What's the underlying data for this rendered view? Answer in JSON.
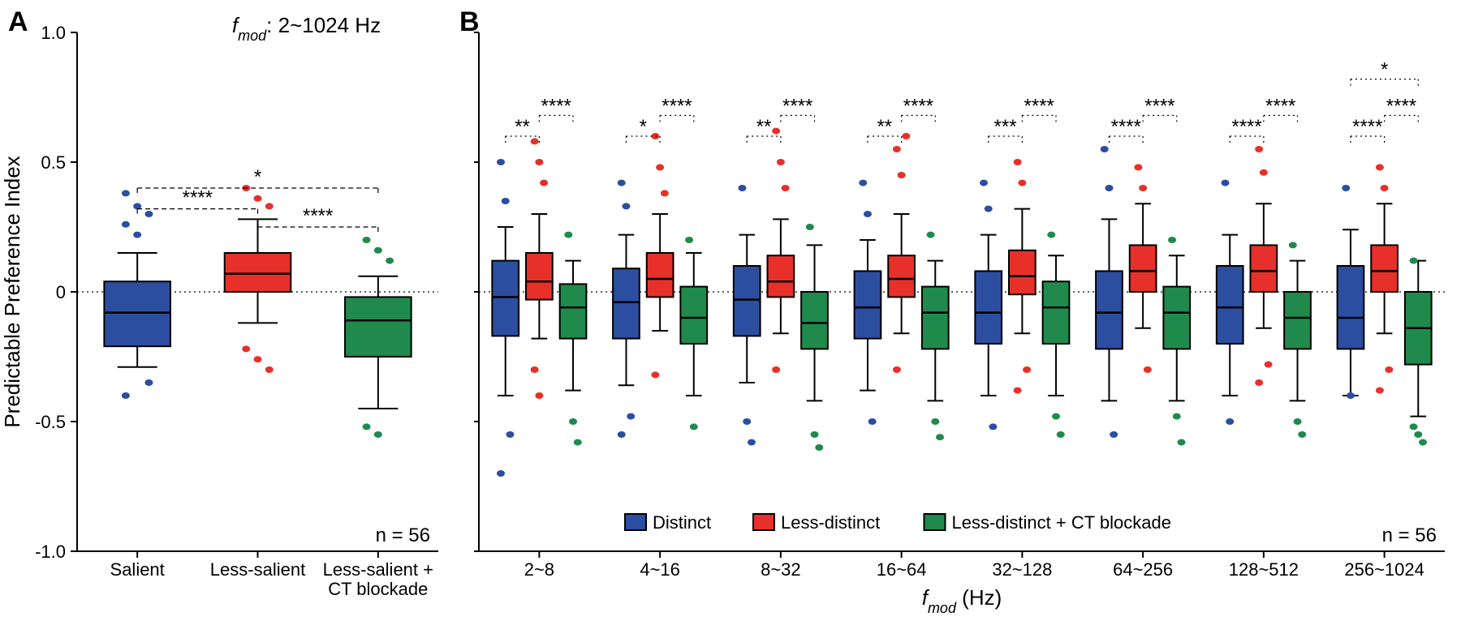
{
  "colors": {
    "blue": "#2b4ea0",
    "red": "#e7302a",
    "green": "#1f8a4c",
    "black": "#000000",
    "white": "#ffffff"
  },
  "ylim": [
    -1.0,
    1.0
  ],
  "yticks": [
    -1.0,
    -0.5,
    0,
    0.5,
    1.0
  ],
  "ytick_labels": [
    "-1.0",
    "-0.5",
    "0",
    "0.5",
    "1.0"
  ],
  "yaxis_title": "Predictable Preference Index",
  "panelA": {
    "label": "A",
    "title_prefix": "f",
    "title_sub": "mod",
    "title_rest": ": 2~1024 Hz",
    "n_text": "n = 56",
    "categories": [
      "Salient",
      "Less-salient",
      "Less-salient +\nCT blockade"
    ],
    "sig": [
      {
        "from": 0,
        "to": 2,
        "y": 0.4,
        "stars": "*"
      },
      {
        "from": 0,
        "to": 1,
        "y": 0.32,
        "stars": "****"
      },
      {
        "from": 1,
        "to": 2,
        "y": 0.25,
        "stars": "****"
      }
    ],
    "boxes": [
      {
        "color": "blue",
        "q1": -0.21,
        "median": -0.08,
        "q3": 0.04,
        "wlo": -0.29,
        "whi": 0.15,
        "outliers": [
          0.38,
          0.33,
          0.3,
          0.26,
          0.22,
          -0.35,
          -0.4
        ]
      },
      {
        "color": "red",
        "q1": 0.0,
        "median": 0.07,
        "q3": 0.15,
        "wlo": -0.12,
        "whi": 0.28,
        "outliers": [
          0.4,
          0.36,
          0.33,
          -0.22,
          -0.26,
          -0.3
        ]
      },
      {
        "color": "green",
        "q1": -0.25,
        "median": -0.11,
        "q3": -0.02,
        "wlo": -0.45,
        "whi": 0.06,
        "outliers": [
          0.2,
          0.16,
          0.12,
          -0.52,
          -0.55
        ]
      }
    ]
  },
  "panelB": {
    "label": "B",
    "n_text": "n = 56",
    "xaxis_title_prefix": "f",
    "xaxis_title_sub": "mod",
    "xaxis_title_rest": " (Hz)",
    "categories": [
      "2~8",
      "4~16",
      "8~32",
      "16~64",
      "32~128",
      "64~256",
      "128~512",
      "256~1024"
    ],
    "legend": [
      {
        "color": "blue",
        "label": "Distinct"
      },
      {
        "color": "red",
        "label": "Less-distinct"
      },
      {
        "color": "green",
        "label": "Less-distinct + CT blockade"
      }
    ],
    "sig_top": {
      "group": 7,
      "stars": "*"
    },
    "sig_pairs": [
      {
        "left": "**",
        "right": "****"
      },
      {
        "left": "*",
        "right": "****"
      },
      {
        "left": "**",
        "right": "****"
      },
      {
        "left": "**",
        "right": "****"
      },
      {
        "left": "***",
        "right": "****"
      },
      {
        "left": "****",
        "right": "****"
      },
      {
        "left": "****",
        "right": "****"
      },
      {
        "left": "****",
        "right": "****"
      }
    ],
    "groups": [
      [
        {
          "color": "blue",
          "q1": -0.17,
          "median": -0.02,
          "q3": 0.12,
          "wlo": -0.4,
          "whi": 0.25,
          "outliers": [
            0.5,
            0.35,
            -0.55,
            -0.7
          ]
        },
        {
          "color": "red",
          "q1": -0.03,
          "median": 0.04,
          "q3": 0.15,
          "wlo": -0.18,
          "whi": 0.3,
          "outliers": [
            0.58,
            0.5,
            0.42,
            -0.3,
            -0.4
          ]
        },
        {
          "color": "green",
          "q1": -0.18,
          "median": -0.06,
          "q3": 0.03,
          "wlo": -0.38,
          "whi": 0.12,
          "outliers": [
            0.22,
            -0.5,
            -0.58
          ]
        }
      ],
      [
        {
          "color": "blue",
          "q1": -0.18,
          "median": -0.04,
          "q3": 0.09,
          "wlo": -0.36,
          "whi": 0.22,
          "outliers": [
            0.42,
            0.33,
            -0.48,
            -0.55
          ]
        },
        {
          "color": "red",
          "q1": -0.02,
          "median": 0.05,
          "q3": 0.15,
          "wlo": -0.15,
          "whi": 0.3,
          "outliers": [
            0.6,
            0.48,
            0.38,
            -0.32
          ]
        },
        {
          "color": "green",
          "q1": -0.2,
          "median": -0.1,
          "q3": 0.02,
          "wlo": -0.4,
          "whi": 0.15,
          "outliers": [
            0.2,
            -0.52
          ]
        }
      ],
      [
        {
          "color": "blue",
          "q1": -0.17,
          "median": -0.03,
          "q3": 0.1,
          "wlo": -0.35,
          "whi": 0.22,
          "outliers": [
            0.4,
            -0.5,
            -0.58
          ]
        },
        {
          "color": "red",
          "q1": -0.02,
          "median": 0.04,
          "q3": 0.14,
          "wlo": -0.16,
          "whi": 0.28,
          "outliers": [
            0.62,
            0.5,
            0.4,
            -0.3
          ]
        },
        {
          "color": "green",
          "q1": -0.22,
          "median": -0.12,
          "q3": 0.0,
          "wlo": -0.42,
          "whi": 0.18,
          "outliers": [
            0.25,
            -0.55,
            -0.6
          ]
        }
      ],
      [
        {
          "color": "blue",
          "q1": -0.18,
          "median": -0.06,
          "q3": 0.08,
          "wlo": -0.38,
          "whi": 0.2,
          "outliers": [
            0.42,
            0.3,
            -0.5
          ]
        },
        {
          "color": "red",
          "q1": -0.02,
          "median": 0.05,
          "q3": 0.14,
          "wlo": -0.16,
          "whi": 0.3,
          "outliers": [
            0.55,
            0.45,
            0.6,
            -0.3
          ]
        },
        {
          "color": "green",
          "q1": -0.22,
          "median": -0.08,
          "q3": 0.02,
          "wlo": -0.42,
          "whi": 0.12,
          "outliers": [
            0.22,
            -0.5,
            -0.56
          ]
        }
      ],
      [
        {
          "color": "blue",
          "q1": -0.2,
          "median": -0.08,
          "q3": 0.08,
          "wlo": -0.4,
          "whi": 0.22,
          "outliers": [
            0.42,
            0.32,
            -0.52
          ]
        },
        {
          "color": "red",
          "q1": -0.01,
          "median": 0.06,
          "q3": 0.16,
          "wlo": -0.16,
          "whi": 0.32,
          "outliers": [
            0.5,
            0.42,
            -0.3,
            -0.38
          ]
        },
        {
          "color": "green",
          "q1": -0.2,
          "median": -0.06,
          "q3": 0.04,
          "wlo": -0.4,
          "whi": 0.14,
          "outliers": [
            0.22,
            -0.48,
            -0.55
          ]
        }
      ],
      [
        {
          "color": "blue",
          "q1": -0.22,
          "median": -0.08,
          "q3": 0.08,
          "wlo": -0.42,
          "whi": 0.28,
          "outliers": [
            0.55,
            0.4,
            -0.55
          ]
        },
        {
          "color": "red",
          "q1": 0.0,
          "median": 0.08,
          "q3": 0.18,
          "wlo": -0.14,
          "whi": 0.34,
          "outliers": [
            0.48,
            0.4,
            -0.3
          ]
        },
        {
          "color": "green",
          "q1": -0.22,
          "median": -0.08,
          "q3": 0.02,
          "wlo": -0.42,
          "whi": 0.14,
          "outliers": [
            0.2,
            -0.48,
            -0.58
          ]
        }
      ],
      [
        {
          "color": "blue",
          "q1": -0.2,
          "median": -0.06,
          "q3": 0.1,
          "wlo": -0.4,
          "whi": 0.22,
          "outliers": [
            0.42,
            -0.5
          ]
        },
        {
          "color": "red",
          "q1": 0.0,
          "median": 0.08,
          "q3": 0.18,
          "wlo": -0.14,
          "whi": 0.34,
          "outliers": [
            0.55,
            0.46,
            -0.28,
            -0.35
          ]
        },
        {
          "color": "green",
          "q1": -0.22,
          "median": -0.1,
          "q3": 0.0,
          "wlo": -0.42,
          "whi": 0.12,
          "outliers": [
            0.18,
            -0.5,
            -0.55
          ]
        }
      ],
      [
        {
          "color": "blue",
          "q1": -0.22,
          "median": -0.1,
          "q3": 0.1,
          "wlo": -0.4,
          "whi": 0.24,
          "outliers": [
            0.4,
            -0.4
          ]
        },
        {
          "color": "red",
          "q1": 0.0,
          "median": 0.08,
          "q3": 0.18,
          "wlo": -0.16,
          "whi": 0.34,
          "outliers": [
            0.48,
            0.4,
            -0.3,
            -0.38
          ]
        },
        {
          "color": "green",
          "q1": -0.28,
          "median": -0.14,
          "q3": 0.0,
          "wlo": -0.48,
          "whi": 0.12,
          "outliers": [
            0.12,
            -0.55,
            -0.58,
            -0.52
          ]
        }
      ]
    ]
  }
}
